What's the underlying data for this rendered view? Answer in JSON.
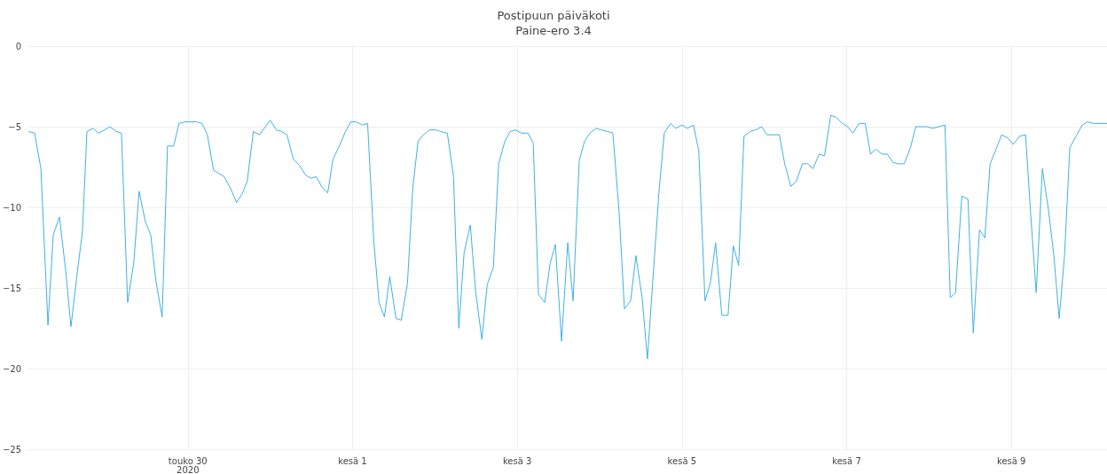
{
  "chart_data": {
    "type": "line",
    "title": "Postipuun päiväkoti",
    "subtitle": "Paine-ero 3.4",
    "x": [
      "2020-05-28T01:33",
      "2020-05-28T03:21",
      "2020-05-28T05:10",
      "2020-05-28T07:14",
      "2020-05-28T08:46",
      "2020-05-28T10:35",
      "2020-05-28T12:23",
      "2020-05-28T13:56",
      "2020-05-28T15:44",
      "2020-05-28T17:17",
      "2020-05-28T18:35",
      "2020-05-28T20:23",
      "2020-05-28T21:56",
      "2020-05-28T23:44",
      "2020-05-29T01:17",
      "2020-05-29T03:06",
      "2020-05-29T04:39",
      "2020-05-29T06:27",
      "2020-05-29T08:15",
      "2020-05-29T09:48",
      "2020-05-29T11:37",
      "2020-05-29T13:10",
      "2020-05-29T14:43",
      "2020-05-29T16:31",
      "2020-05-29T18:04",
      "2020-05-29T19:52",
      "2020-05-29T21:25",
      "2020-05-29T23:14",
      "2020-05-30T02:35",
      "2020-05-30T04:08",
      "2020-05-30T05:41",
      "2020-05-30T07:29",
      "2020-05-30T09:02",
      "2020-05-30T10:35",
      "2020-05-30T12:23",
      "2020-05-30T14:12",
      "2020-05-30T15:45",
      "2020-05-30T17:17",
      "2020-05-30T19:06",
      "2020-05-30T20:54",
      "2020-05-31T00:00",
      "2020-05-31T01:48",
      "2020-05-31T03:21",
      "2020-05-31T04:54",
      "2020-05-31T06:43",
      "2020-05-31T08:31",
      "2020-05-31T10:19",
      "2020-05-31T11:52",
      "2020-05-31T13:25",
      "2020-05-31T15:14",
      "2020-05-31T16:46",
      "2020-05-31T18:19",
      "2020-05-31T20:08",
      "2020-05-31T21:56",
      "2020-05-31T23:29",
      "2020-06-01T01:02",
      "2020-06-01T02:50",
      "2020-06-01T04:23",
      "2020-06-01T06:11",
      "2020-06-01T07:44",
      "2020-06-01T09:17",
      "2020-06-01T10:50",
      "2020-06-01T12:39",
      "2020-06-01T14:11",
      "2020-06-01T16:00",
      "2020-06-01T17:33",
      "2020-06-01T19:06",
      "2020-06-01T20:39",
      "2020-06-01T22:27",
      "2020-06-02T00:15",
      "2020-06-02T01:48",
      "2020-06-02T03:37",
      "2020-06-02T05:25",
      "2020-06-02T06:58",
      "2020-06-02T08:31",
      "2020-06-02T10:19",
      "2020-06-02T11:52",
      "2020-06-02T13:41",
      "2020-06-02T15:14",
      "2020-06-02T17:02",
      "2020-06-02T18:35",
      "2020-06-02T20:23",
      "2020-06-02T21:56",
      "2020-06-02T23:29",
      "2020-06-03T01:17",
      "2020-06-03T03:06",
      "2020-06-03T04:39",
      "2020-06-03T06:11",
      "2020-06-03T08:00",
      "2020-06-03T09:33",
      "2020-06-03T11:06",
      "2020-06-03T12:54",
      "2020-06-03T14:43",
      "2020-06-03T16:16",
      "2020-06-03T18:04",
      "2020-06-03T19:37",
      "2020-06-03T21:10",
      "2020-06-03T22:58",
      "2020-06-04T00:31",
      "2020-06-04T02:19",
      "2020-06-04T03:52",
      "2020-06-04T05:41",
      "2020-06-04T07:14",
      "2020-06-04T09:02",
      "2020-06-04T10:35",
      "2020-06-04T12:23",
      "2020-06-04T13:56",
      "2020-06-04T15:29",
      "2020-06-04T17:17",
      "2020-06-04T18:50",
      "2020-06-04T20:39",
      "2020-06-04T22:11",
      "2020-06-05T00:00",
      "2020-06-05T01:33",
      "2020-06-05T03:21",
      "2020-06-05T04:54",
      "2020-06-05T06:43",
      "2020-06-05T08:16",
      "2020-06-05T09:48",
      "2020-06-05T11:37",
      "2020-06-05T13:25",
      "2020-06-05T14:58",
      "2020-06-05T16:31",
      "2020-06-05T18:04",
      "2020-06-05T19:52",
      "2020-06-05T21:25",
      "2020-06-05T23:14",
      "2020-06-06T00:46",
      "2020-06-06T02:35",
      "2020-06-06T04:23",
      "2020-06-06T05:56",
      "2020-06-06T07:44",
      "2020-06-06T09:17",
      "2020-06-06T11:06",
      "2020-06-06T12:39",
      "2020-06-06T14:11",
      "2020-06-06T16:00",
      "2020-06-06T17:33",
      "2020-06-06T19:21",
      "2020-06-06T20:54",
      "2020-06-06T22:43",
      "2020-06-07T00:16",
      "2020-06-07T01:48",
      "2020-06-07T03:37",
      "2020-06-07T05:25",
      "2020-06-07T06:58",
      "2020-06-07T08:31",
      "2020-06-07T10:19",
      "2020-06-07T11:52",
      "2020-06-07T13:25",
      "2020-06-07T14:58",
      "2020-06-07T16:46",
      "2020-06-07T18:35",
      "2020-06-07T20:08",
      "2020-06-07T21:41",
      "2020-06-07T23:29",
      "2020-06-08T01:02",
      "2020-06-08T02:50",
      "2020-06-08T04:39",
      "2020-06-08T06:11",
      "2020-06-08T07:44",
      "2020-06-08T09:33",
      "2020-06-08T11:21",
      "2020-06-08T12:54",
      "2020-06-08T14:43",
      "2020-06-08T16:16",
      "2020-06-08T17:48",
      "2020-06-08T19:21",
      "2020-06-08T21:10",
      "2020-06-08T22:58",
      "2020-06-09T00:31",
      "2020-06-09T02:19",
      "2020-06-09T04:08",
      "2020-06-09T05:41",
      "2020-06-09T07:14",
      "2020-06-09T09:02",
      "2020-06-09T10:50",
      "2020-06-09T12:23",
      "2020-06-09T13:56",
      "2020-06-09T15:29",
      "2020-06-09T17:02",
      "2020-06-09T18:50",
      "2020-06-09T20:39",
      "2020-06-09T22:11",
      "2020-06-10T00:00",
      "2020-06-10T01:48",
      "2020-06-10T03:52"
    ],
    "series": [
      {
        "color": "#3fb1e3",
        "values": [
          -5.3,
          -5.4,
          -7.6,
          -17.3,
          -11.7,
          -10.6,
          -13.9,
          -17.4,
          -14.1,
          -11.5,
          -5.3,
          -5.1,
          -5.4,
          -5.2,
          -5.0,
          -5.3,
          -5.4,
          -15.9,
          -13.4,
          -9.0,
          -10.9,
          -11.7,
          -14.6,
          -16.8,
          -6.2,
          -6.2,
          -4.8,
          -4.7,
          -4.7,
          -4.8,
          -5.5,
          -7.7,
          -7.9,
          -8.1,
          -8.8,
          -9.7,
          -9.2,
          -8.4,
          -5.3,
          -5.5,
          -4.6,
          -5.2,
          -5.3,
          -5.5,
          -7.0,
          -7.4,
          -8.0,
          -8.2,
          -8.1,
          -8.8,
          -9.1,
          -7.0,
          -6.2,
          -5.3,
          -4.7,
          -4.7,
          -4.9,
          -4.8,
          -12.1,
          -15.9,
          -16.8,
          -14.3,
          -16.9,
          -17.0,
          -14.7,
          -8.8,
          -5.9,
          -5.5,
          -5.2,
          -5.2,
          -5.3,
          -5.4,
          -8.1,
          -17.5,
          -12.8,
          -11.1,
          -15.2,
          -18.2,
          -14.8,
          -13.7,
          -7.3,
          -5.9,
          -5.3,
          -5.2,
          -5.4,
          -5.4,
          -6.0,
          -15.4,
          -15.9,
          -13.5,
          -12.3,
          -18.3,
          -12.2,
          -15.8,
          -7.1,
          -5.9,
          -5.4,
          -5.1,
          -5.2,
          -5.3,
          -5.4,
          -10.3,
          -16.3,
          -15.8,
          -13.0,
          -15.6,
          -19.4,
          -14.6,
          -9.1,
          -5.4,
          -4.8,
          -5.1,
          -4.9,
          -5.1,
          -4.9,
          -6.5,
          -15.8,
          -14.7,
          -12.2,
          -16.7,
          -16.7,
          -12.4,
          -13.6,
          -5.6,
          -5.3,
          -5.2,
          -5.0,
          -5.5,
          -5.5,
          -5.5,
          -7.3,
          -8.7,
          -8.4,
          -7.3,
          -7.3,
          -7.6,
          -6.7,
          -6.8,
          -4.3,
          -4.4,
          -4.8,
          -5.0,
          -5.4,
          -4.8,
          -4.8,
          -6.7,
          -6.4,
          -6.7,
          -6.7,
          -7.2,
          -7.3,
          -7.3,
          -6.3,
          -5.0,
          -5.0,
          -5.0,
          -5.1,
          -5.0,
          -4.9,
          -15.6,
          -15.3,
          -9.3,
          -9.5,
          -17.8,
          -11.4,
          -11.9,
          -7.3,
          -6.5,
          -5.5,
          -5.7,
          -6.1,
          -5.6,
          -5.5,
          -10.6,
          -15.3,
          -7.6,
          -10.2,
          -13.0,
          -16.9,
          -13.0,
          -6.3,
          -5.6,
          -4.9,
          -4.7,
          -4.8,
          -4.8,
          -4.8
        ]
      }
    ],
    "xlim": [
      "2020-05-28T01:33",
      "2020-06-10T03:52"
    ],
    "xticks": [
      {
        "value": "2020-05-30",
        "label": "touko 30\n2020"
      },
      {
        "value": "2020-06-01",
        "label": "kesä 1"
      },
      {
        "value": "2020-06-03",
        "label": "kesä 3"
      },
      {
        "value": "2020-06-05",
        "label": "kesä 5"
      },
      {
        "value": "2020-06-07",
        "label": "kesä 7"
      },
      {
        "value": "2020-06-09",
        "label": "kesä 9"
      }
    ],
    "ylim": [
      -25,
      0
    ],
    "yticks": [
      {
        "value": -25,
        "label": "−25"
      },
      {
        "value": -20,
        "label": "−20"
      },
      {
        "value": -15,
        "label": "−15"
      },
      {
        "value": -10,
        "label": "−10"
      },
      {
        "value": -5,
        "label": "−5"
      },
      0
    ],
    "grid": true,
    "marker": "none",
    "line_style": "solid"
  }
}
